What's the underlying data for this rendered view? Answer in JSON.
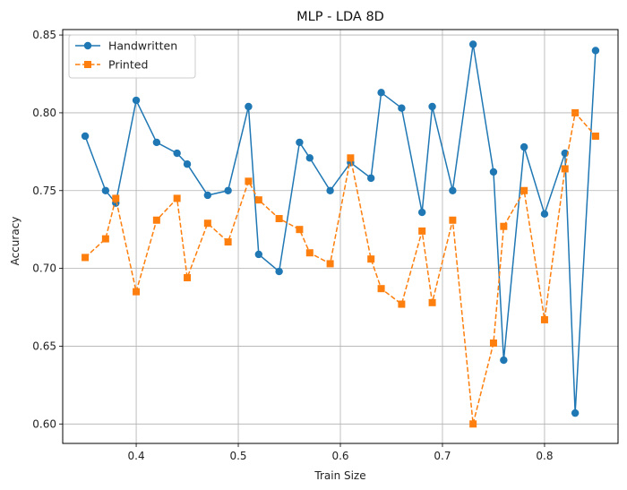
{
  "chart_data": {
    "type": "line",
    "title": "MLP - LDA 8D",
    "xlabel": "Train Size",
    "ylabel": "Accuracy",
    "xlim": [
      0.328,
      0.872
    ],
    "ylim": [
      0.5875,
      0.8535
    ],
    "xticks": [
      0.4,
      0.5,
      0.6,
      0.7,
      0.8
    ],
    "xtick_labels": [
      "0.4",
      "0.5",
      "0.6",
      "0.7",
      "0.8"
    ],
    "yticks": [
      0.6,
      0.65,
      0.7,
      0.75,
      0.8,
      0.85
    ],
    "ytick_labels": [
      "0.60",
      "0.65",
      "0.70",
      "0.75",
      "0.80",
      "0.85"
    ],
    "grid": true,
    "legend_position": "top-left",
    "x": [
      0.35,
      0.37,
      0.38,
      0.4,
      0.42,
      0.44,
      0.45,
      0.47,
      0.49,
      0.51,
      0.52,
      0.54,
      0.56,
      0.57,
      0.59,
      0.61,
      0.63,
      0.64,
      0.66,
      0.68,
      0.69,
      0.71,
      0.73,
      0.75,
      0.76,
      0.78,
      0.8,
      0.82,
      0.83,
      0.85
    ],
    "series": [
      {
        "name": "Handwritten",
        "color": "#1f77b4",
        "line_style": "solid",
        "marker": "circle",
        "values": [
          0.785,
          0.75,
          0.742,
          0.808,
          0.781,
          0.774,
          0.767,
          0.747,
          0.75,
          0.804,
          0.709,
          0.698,
          0.781,
          0.771,
          0.75,
          0.768,
          0.758,
          0.813,
          0.803,
          0.736,
          0.804,
          0.75,
          0.844,
          0.762,
          0.641,
          0.778,
          0.735,
          0.774,
          0.607,
          0.84
        ]
      },
      {
        "name": "Printed",
        "color": "#ff7f0e",
        "line_style": "dashed",
        "marker": "square",
        "values": [
          0.707,
          0.719,
          0.745,
          0.685,
          0.731,
          0.745,
          0.694,
          0.729,
          0.717,
          0.756,
          0.744,
          0.732,
          0.725,
          0.71,
          0.703,
          0.771,
          0.706,
          0.687,
          0.677,
          0.724,
          0.678,
          0.731,
          0.6,
          0.652,
          0.727,
          0.75,
          0.667,
          0.764,
          0.8,
          0.785
        ]
      }
    ]
  }
}
